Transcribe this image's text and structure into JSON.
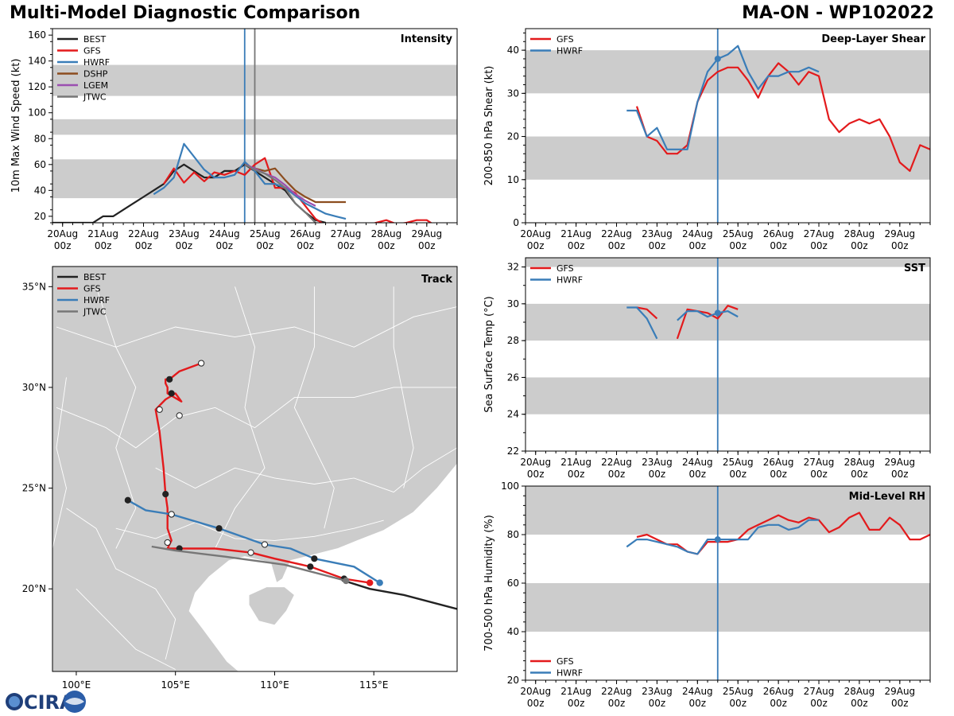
{
  "header": {
    "title_left": "Multi-Model Diagnostic Comparison",
    "title_right": "MA-ON - WP102022"
  },
  "logo": {
    "text": "CIRA",
    "name": "cira-logo"
  },
  "colors": {
    "BEST": "#222222",
    "GFS": "#e31a1c",
    "HWRF": "#3a7db8",
    "DSHP": "#8c4d1f",
    "LGEM": "#9b4fb0",
    "JTWC": "#777777",
    "band": "#cccccc",
    "vline": "#3a7db8",
    "vline2": "#777777",
    "land": "#cccccc",
    "water": "#ffffff"
  },
  "time_axis": {
    "tick_labels": [
      "20Aug\n00z",
      "21Aug\n00z",
      "22Aug\n00z",
      "23Aug\n00z",
      "24Aug\n00z",
      "25Aug\n00z",
      "26Aug\n00z",
      "27Aug\n00z",
      "28Aug\n00z",
      "29Aug\n00z"
    ],
    "tick_hours": [
      0,
      24,
      48,
      72,
      96,
      120,
      144,
      168,
      192,
      216
    ],
    "range_hours": [
      -6,
      234
    ],
    "current_time_hours": 108,
    "jtwc_time_hours": 114
  },
  "chart_data": [
    {
      "id": "intensity",
      "type": "line",
      "title": "Intensity",
      "ylabel": "10m Max Wind Speed (kt)",
      "ylim": [
        15,
        165
      ],
      "yticks": [
        20,
        40,
        60,
        80,
        100,
        120,
        140,
        160
      ],
      "bands": [
        [
          34,
          64
        ],
        [
          83,
          95
        ],
        [
          113,
          137
        ]
      ],
      "legend_position": "top-left",
      "legend": [
        "BEST",
        "GFS",
        "HWRF",
        "DSHP",
        "LGEM",
        "JTWC"
      ],
      "series": [
        {
          "name": "BEST",
          "x": [
            -6,
            0,
            6,
            12,
            18,
            24,
            30,
            36,
            42,
            48,
            54,
            60,
            66,
            72,
            78,
            84,
            90,
            96,
            102,
            108,
            114,
            120,
            126,
            132,
            138,
            144,
            150,
            156
          ],
          "y": [
            15,
            15,
            15,
            15,
            15,
            20,
            20,
            25,
            30,
            35,
            40,
            45,
            55,
            60,
            55,
            50,
            50,
            55,
            55,
            60,
            55,
            50,
            45,
            40,
            30,
            23,
            17,
            15
          ]
        },
        {
          "name": "GFS",
          "x": [
            60,
            66,
            72,
            78,
            84,
            90,
            96,
            102,
            108,
            114,
            120,
            126,
            132,
            138,
            144,
            150,
            156,
            162,
            168,
            174,
            180,
            186,
            192,
            198,
            204,
            210,
            216,
            222,
            228
          ],
          "y": [
            45,
            57,
            46,
            54,
            47,
            54,
            52,
            55,
            52,
            60,
            65,
            42,
            42,
            38,
            28,
            18,
            13,
            12,
            13,
            12,
            13,
            15,
            17,
            14,
            15,
            17,
            17,
            12,
            10
          ]
        },
        {
          "name": "HWRF",
          "x": [
            54,
            60,
            66,
            72,
            78,
            84,
            90,
            96,
            102,
            108,
            114,
            120,
            126,
            132,
            138,
            144,
            150,
            156,
            162,
            168
          ],
          "y": [
            37,
            42,
            50,
            76,
            66,
            56,
            50,
            50,
            52,
            62,
            55,
            45,
            45,
            42,
            36,
            30,
            26,
            22,
            20,
            18
          ]
        },
        {
          "name": "DSHP",
          "x": [
            108,
            114,
            120,
            126,
            132,
            138,
            144,
            150,
            156,
            162,
            168
          ],
          "y": [
            60,
            57,
            55,
            57,
            48,
            40,
            35,
            31,
            31,
            31,
            31
          ]
        },
        {
          "name": "LGEM",
          "x": [
            108,
            114,
            120,
            126,
            132,
            138,
            144,
            150
          ],
          "y": [
            60,
            57,
            53,
            50,
            44,
            37,
            32,
            28
          ]
        },
        {
          "name": "JTWC",
          "x": [
            108,
            114,
            120,
            126,
            132,
            138,
            144,
            150
          ],
          "y": [
            60,
            56,
            53,
            48,
            42,
            30,
            23,
            15
          ]
        }
      ]
    },
    {
      "id": "shear",
      "type": "line",
      "title": "Deep-Layer Shear",
      "ylabel": "200-850 hPa Shear (kt)",
      "ylim": [
        0,
        45
      ],
      "yticks": [
        0,
        10,
        20,
        30,
        40
      ],
      "bands": [
        [
          10,
          20
        ],
        [
          30,
          40
        ]
      ],
      "legend_position": "top-left",
      "legend": [
        "GFS",
        "HWRF"
      ],
      "series": [
        {
          "name": "GFS",
          "x": [
            60,
            66,
            72,
            78,
            84,
            90,
            96,
            102,
            108,
            114,
            120,
            126,
            132,
            138,
            144,
            150,
            156,
            162,
            168,
            174,
            180,
            186,
            192,
            198,
            204,
            210,
            216,
            222,
            228,
            234
          ],
          "y": [
            27,
            20,
            19,
            16,
            16,
            18,
            28,
            33,
            35,
            36,
            36,
            33,
            29,
            34,
            37,
            35,
            32,
            35,
            34,
            24,
            21,
            23,
            24,
            23,
            24,
            20,
            14,
            12,
            18,
            17
          ]
        },
        {
          "name": "HWRF",
          "x": [
            54,
            60,
            66,
            72,
            78,
            84,
            90,
            96,
            102,
            108,
            114,
            120,
            126,
            132,
            138,
            144,
            150,
            156,
            162,
            168
          ],
          "y": [
            26,
            26,
            20,
            22,
            17,
            17,
            17,
            28,
            35,
            38,
            39,
            41,
            35,
            31,
            34,
            34,
            35,
            35,
            36,
            35
          ]
        }
      ],
      "markers": [
        {
          "series": "HWRF",
          "x": 108,
          "y": 38
        }
      ]
    },
    {
      "id": "sst",
      "type": "line",
      "title": "SST",
      "ylabel": "Sea Surface Temp (°C)",
      "ylim": [
        22,
        32.5
      ],
      "yticks": [
        22,
        24,
        26,
        28,
        30,
        32
      ],
      "bands": [
        [
          24,
          26
        ],
        [
          28,
          30
        ],
        [
          32,
          32.5
        ]
      ],
      "legend_position": "top-left",
      "legend": [
        "GFS",
        "HWRF"
      ],
      "series": [
        {
          "name": "GFS",
          "x": [
            60,
            66,
            72
          ],
          "y": [
            29.8,
            29.7,
            29.2
          ]
        },
        {
          "name": "GFS",
          "x": [
            84,
            90,
            96,
            102,
            108,
            114,
            120
          ],
          "y": [
            28.1,
            29.7,
            29.6,
            29.5,
            29.2,
            29.9,
            29.7
          ]
        },
        {
          "name": "HWRF",
          "x": [
            54,
            60,
            66,
            72
          ],
          "y": [
            29.8,
            29.8,
            29.2,
            28.1
          ]
        },
        {
          "name": "HWRF",
          "x": [
            84,
            90,
            96,
            102,
            108,
            114,
            120
          ],
          "y": [
            29.1,
            29.6,
            29.6,
            29.3,
            29.5,
            29.6,
            29.3
          ]
        }
      ],
      "markers": [
        {
          "series": "HWRF",
          "x": 108,
          "y": 29.5
        }
      ]
    },
    {
      "id": "rh",
      "type": "line",
      "title": "Mid-Level RH",
      "ylabel": "700-500 hPa Humidity (%)",
      "ylim": [
        20,
        100
      ],
      "yticks": [
        20,
        40,
        60,
        80,
        100
      ],
      "bands": [
        [
          40,
          60
        ],
        [
          80,
          100
        ]
      ],
      "legend_position": "bottom-left",
      "legend": [
        "GFS",
        "HWRF"
      ],
      "series": [
        {
          "name": "GFS",
          "x": [
            60,
            66,
            72,
            78,
            84,
            90,
            96,
            102,
            108,
            114,
            120,
            126,
            132,
            138,
            144,
            150,
            156,
            162,
            168,
            174,
            180,
            186,
            192,
            198,
            204,
            210,
            216,
            222,
            228,
            234
          ],
          "y": [
            79,
            80,
            78,
            76,
            76,
            73,
            72,
            77,
            77,
            77,
            78,
            82,
            84,
            86,
            88,
            86,
            85,
            87,
            86,
            81,
            83,
            87,
            89,
            82,
            82,
            87,
            84,
            78,
            78,
            80
          ]
        },
        {
          "name": "HWRF",
          "x": [
            54,
            60,
            66,
            72,
            78,
            84,
            90,
            96,
            102,
            108,
            114,
            120,
            126,
            132,
            138,
            144,
            150,
            156,
            162,
            168
          ],
          "y": [
            75,
            78,
            78,
            77,
            76,
            75,
            73,
            72,
            78,
            78,
            78,
            78,
            78,
            83,
            84,
            84,
            82,
            83,
            86,
            86
          ]
        }
      ],
      "markers": [
        {
          "series": "HWRF",
          "x": 108,
          "y": 78
        }
      ]
    },
    {
      "id": "track",
      "type": "scatter",
      "title": "Track",
      "lon_range": [
        98.8,
        119.2
      ],
      "lat_range": [
        15.9,
        36.0
      ],
      "lon_ticks": [
        100,
        105,
        110,
        115
      ],
      "lon_tick_labels": [
        "100°E",
        "105°E",
        "110°E",
        "115°E"
      ],
      "lat_ticks": [
        20,
        25,
        30,
        35
      ],
      "lat_tick_labels": [
        "20°N",
        "25°N",
        "30°N",
        "35°N"
      ],
      "legend_position": "top-left",
      "legend": [
        "BEST",
        "GFS",
        "HWRF",
        "JTWC"
      ],
      "series": [
        {
          "name": "BEST",
          "lon": [
            119.2,
            116.5,
            114.8,
            113.5
          ],
          "lat": [
            19.0,
            19.7,
            20.0,
            20.4
          ],
          "markers": []
        },
        {
          "name": "GFS",
          "lon": [
            114.8,
            113.5,
            111.8,
            110.0,
            108.8,
            107.0,
            105.2,
            104.6,
            104.8,
            104.6,
            104.6,
            104.5,
            104.4,
            104.2,
            104.0,
            104.5,
            105.0,
            105.3,
            104.6,
            104.6,
            104.5,
            104.5,
            104.7,
            105.2,
            106.3
          ],
          "lat": [
            20.3,
            20.5,
            21.1,
            21.5,
            21.8,
            22.0,
            22.0,
            22.0,
            22.4,
            23.0,
            24.0,
            24.7,
            26.0,
            27.8,
            28.9,
            29.4,
            29.7,
            29.3,
            29.7,
            30.0,
            30.2,
            30.4,
            30.4,
            30.8,
            31.2
          ],
          "markers": [
            {
              "lon": 113.5,
              "lat": 20.5,
              "fill": "#222"
            },
            {
              "lon": 111.8,
              "lat": 21.1,
              "fill": "#222"
            },
            {
              "lon": 108.8,
              "lat": 21.8,
              "fill": "#fff"
            },
            {
              "lon": 105.2,
              "lat": 22.0,
              "fill": "#222"
            },
            {
              "lon": 104.6,
              "lat": 22.3,
              "fill": "#fff"
            },
            {
              "lon": 104.8,
              "lat": 23.7,
              "fill": "#fff"
            },
            {
              "lon": 104.5,
              "lat": 24.7,
              "fill": "#222"
            },
            {
              "lon": 104.2,
              "lat": 28.9,
              "fill": "#fff"
            },
            {
              "lon": 105.2,
              "lat": 28.6,
              "fill": "#fff"
            },
            {
              "lon": 104.8,
              "lat": 29.7,
              "fill": "#222"
            },
            {
              "lon": 104.7,
              "lat": 30.4,
              "fill": "#222"
            },
            {
              "lon": 106.3,
              "lat": 31.2,
              "fill": "#fff"
            }
          ],
          "start_marker": {
            "lon": 114.8,
            "lat": 20.3
          }
        },
        {
          "name": "HWRF",
          "lon": [
            115.3,
            114.0,
            112.0,
            110.8,
            109.5,
            107.2,
            104.8,
            103.5,
            102.6
          ],
          "lat": [
            20.3,
            21.1,
            21.5,
            22.0,
            22.2,
            23.0,
            23.7,
            23.9,
            24.4
          ],
          "markers": [
            {
              "lon": 112.0,
              "lat": 21.5,
              "fill": "#222"
            },
            {
              "lon": 109.5,
              "lat": 22.2,
              "fill": "#fff"
            },
            {
              "lon": 107.2,
              "lat": 23.0,
              "fill": "#222"
            },
            {
              "lon": 104.8,
              "lat": 23.7,
              "fill": "#fff"
            },
            {
              "lon": 102.6,
              "lat": 24.4,
              "fill": "#222"
            }
          ],
          "start_marker": {
            "lon": 115.3,
            "lat": 20.3
          }
        },
        {
          "name": "JTWC",
          "lon": [
            113.6,
            110.5,
            107.5,
            105.0,
            103.8
          ],
          "lat": [
            20.4,
            21.2,
            21.6,
            21.9,
            22.1
          ],
          "markers": [],
          "start_marker": {
            "lon": 113.6,
            "lat": 20.4
          }
        }
      ]
    }
  ]
}
